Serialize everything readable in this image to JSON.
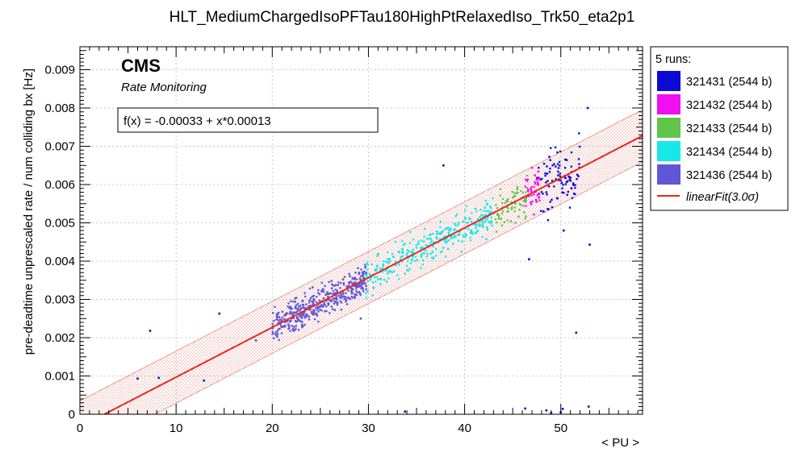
{
  "chart_data": {
    "type": "scatter",
    "title": "HLT_MediumChargedIsoPFTau180HighPtRelaxedIso_Trk50_eta2p1",
    "xlabel": "< PU >",
    "ylabel": "pre-deadtime unprescaled rate / num colliding bx [Hz]",
    "xlim": [
      0,
      58.5
    ],
    "ylim": [
      0,
      0.0096
    ],
    "x_ticks": [
      0,
      10,
      20,
      30,
      40,
      50
    ],
    "x_tick_labels": [
      "0",
      "10",
      "20",
      "30",
      "40",
      "50"
    ],
    "y_ticks": [
      0,
      0.001,
      0.002,
      0.003,
      0.004,
      0.005,
      0.006,
      0.007,
      0.008,
      0.009
    ],
    "y_tick_labels": [
      "0",
      "0.001",
      "0.002",
      "0.003",
      "0.004",
      "0.005",
      "0.006",
      "0.007",
      "0.008",
      "0.009"
    ],
    "annotations": {
      "experiment": "CMS",
      "subtitle": "Rate Monitoring",
      "fit_formula": "f(x) = -0.00033 + x*0.00013"
    },
    "fit": {
      "intercept": -0.00033,
      "slope": 0.00013,
      "band_sigma": 3.0,
      "band_halfwidth": 0.00068,
      "color": "#e8281c"
    },
    "legend": {
      "header": "5 runs:",
      "fit_label": "linearFit(3.0σ)",
      "placement": "right"
    },
    "series": [
      {
        "name": "321431 (2544 b)",
        "color": "#0b0bd6",
        "x_range": [
          47.5,
          52
        ],
        "density": 95,
        "spread": 0.0004,
        "outliers": [
          [
            52.8,
            0.008
          ],
          [
            53.0,
            0.00443
          ],
          [
            51.6,
            0.00213
          ],
          [
            46.7,
            0.00405
          ],
          [
            48.2,
            0.0053
          ],
          [
            50.3,
            0.0048
          ],
          [
            14.5,
            0.00263
          ],
          [
            7.3,
            0.00218
          ],
          [
            8.2,
            0.00095
          ],
          [
            6.0,
            0.00093
          ],
          [
            12.9,
            0.00088
          ],
          [
            37.8,
            0.0065
          ],
          [
            46.3,
            0.00015
          ],
          [
            48.5,
            0.0001
          ],
          [
            50.2,
            0.00014
          ],
          [
            52.9,
            0.0002
          ],
          [
            33.8,
            7e-05
          ],
          [
            49.0,
            3e-05
          ],
          [
            50.0,
            5e-05
          ]
        ]
      },
      {
        "name": "321432 (2544 b)",
        "color": "#f00ff0",
        "x_range": [
          46.3,
          47.8
        ],
        "density": 45,
        "spread": 0.00028,
        "outliers": []
      },
      {
        "name": "321433 (2544 b)",
        "color": "#5fc64a",
        "x_range": [
          43.2,
          46.6
        ],
        "density": 70,
        "spread": 0.00025,
        "outliers": []
      },
      {
        "name": "321434 (2544 b)",
        "color": "#19e8e8",
        "x_range": [
          29.7,
          43.0
        ],
        "density": 330,
        "spread": 0.00023,
        "outliers": []
      },
      {
        "name": "321436 (2544 b)",
        "color": "#6057d6",
        "x_range": [
          20.0,
          29.8
        ],
        "density": 420,
        "spread": 0.0002,
        "outliers": [
          [
            18.3,
            0.00193
          ],
          [
            29.2,
            0.0025
          ]
        ]
      }
    ]
  }
}
